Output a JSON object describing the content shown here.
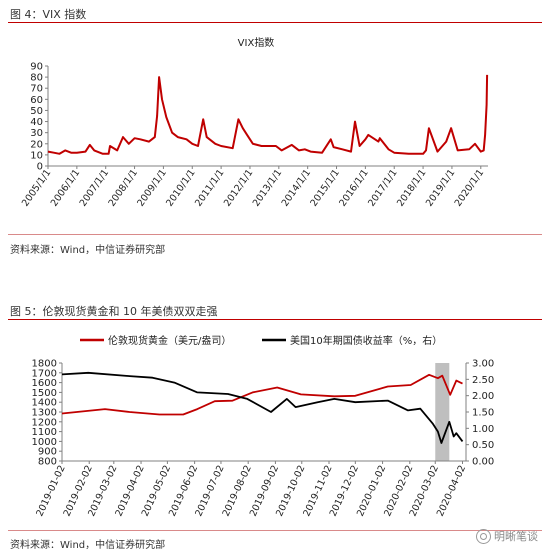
{
  "figure4": {
    "label": "图 4：VIX 指数",
    "source": "资料来源：Wind，中信证券研究部"
  },
  "figure5": {
    "label": "图 5：伦敦现货黄金和 10 年美债双双走强",
    "source": "资料来源：Wind，中信证券研究部"
  },
  "watermark": "明晰笔谈",
  "colors": {
    "red": "#c00000",
    "black": "#000000",
    "shade": "#bfbfbf",
    "axis": "#808080"
  },
  "chart_data": [
    {
      "type": "line",
      "title": "VIX指数",
      "xlabel": "",
      "ylabel": "",
      "ylim": [
        0,
        90
      ],
      "yticks": [
        0,
        10,
        20,
        30,
        40,
        50,
        60,
        70,
        80,
        90
      ],
      "xticks": [
        "2005/1/1",
        "2006/1/1",
        "2007/1/1",
        "2008/1/1",
        "2009/1/1",
        "2010/1/1",
        "2011/1/1",
        "2012/1/1",
        "2013/1/1",
        "2014/1/1",
        "2015/1/1",
        "2016/1/1",
        "2017/1/1",
        "2018/1/1",
        "2019/1/1",
        "2020/1/1"
      ],
      "grid": false,
      "legend": "none",
      "series": [
        {
          "color": "#c00000",
          "x": [
            2005.0,
            2005.2,
            2005.4,
            2005.6,
            2005.8,
            2006.0,
            2006.3,
            2006.45,
            2006.6,
            2006.9,
            2007.1,
            2007.15,
            2007.4,
            2007.6,
            2007.8,
            2008.0,
            2008.2,
            2008.5,
            2008.7,
            2008.78,
            2008.85,
            2008.95,
            2009.1,
            2009.3,
            2009.5,
            2009.8,
            2010.0,
            2010.2,
            2010.38,
            2010.5,
            2010.8,
            2011.0,
            2011.4,
            2011.6,
            2011.75,
            2011.9,
            2012.1,
            2012.4,
            2012.7,
            2012.9,
            2013.1,
            2013.45,
            2013.7,
            2013.9,
            2014.1,
            2014.5,
            2014.8,
            2014.9,
            2015.2,
            2015.5,
            2015.64,
            2015.8,
            2016.0,
            2016.1,
            2016.45,
            2016.5,
            2016.8,
            2017.0,
            2017.5,
            2017.9,
            2018.0,
            2018.1,
            2018.2,
            2018.5,
            2018.8,
            2018.97,
            2019.2,
            2019.6,
            2019.8,
            2020.0,
            2020.1,
            2020.15,
            2020.2,
            2020.22
          ],
          "values": [
            13,
            12,
            11,
            14,
            12,
            12,
            13,
            19,
            14,
            11,
            11,
            18,
            14,
            26,
            20,
            25,
            24,
            22,
            26,
            45,
            80,
            60,
            44,
            30,
            26,
            24,
            20,
            18,
            42,
            26,
            20,
            18,
            16,
            42,
            34,
            28,
            20,
            18,
            18,
            18,
            14,
            19,
            14,
            15,
            13,
            12,
            24,
            17,
            15,
            13,
            40,
            18,
            24,
            28,
            22,
            25,
            15,
            12,
            11,
            11,
            11,
            14,
            34,
            13,
            22,
            34,
            14,
            15,
            20,
            13,
            14,
            28,
            55,
            82
          ]
        }
      ]
    },
    {
      "type": "line",
      "title": "",
      "xlabel": "",
      "ylabel": "",
      "ylim": [
        800,
        1800
      ],
      "yticks": [
        800,
        900,
        1000,
        1100,
        1200,
        1300,
        1400,
        1500,
        1600,
        1700,
        1800
      ],
      "y2lim": [
        0,
        3
      ],
      "y2ticks": [
        "0.00",
        "0.50",
        "1.00",
        "1.50",
        "2.00",
        "2.50",
        "3.00"
      ],
      "xticks": [
        "2019-01-02",
        "2019-02-02",
        "2019-03-02",
        "2019-04-02",
        "2019-05-02",
        "2019-06-02",
        "2019-07-02",
        "2019-08-02",
        "2019-09-02",
        "2019-10-02",
        "2019-11-02",
        "2019-12-02",
        "2020-01-02",
        "2020-02-02",
        "2020-03-02",
        "2020-04-02"
      ],
      "grid": false,
      "legend": "top",
      "shaded_region": [
        "2020-03-02",
        "2020-03-18"
      ],
      "series": [
        {
          "name": "伦敦现货黄金（美元/盎司）",
          "axis": "left",
          "color": "#c00000",
          "x": [
            "2019-01-02",
            "2019-02-20",
            "2019-03-20",
            "2019-04-23",
            "2019-05-20",
            "2019-06-05",
            "2019-06-25",
            "2019-07-15",
            "2019-08-07",
            "2019-09-04",
            "2019-10-01",
            "2019-11-08",
            "2019-12-02",
            "2020-01-08",
            "2020-02-03",
            "2020-02-24",
            "2020-03-05",
            "2020-03-10",
            "2020-03-19",
            "2020-03-26",
            "2020-04-02"
          ],
          "values": [
            1285,
            1330,
            1300,
            1275,
            1275,
            1330,
            1410,
            1415,
            1500,
            1550,
            1480,
            1460,
            1465,
            1560,
            1575,
            1680,
            1645,
            1670,
            1475,
            1620,
            1590
          ]
        },
        {
          "name": "美国10年期国债收益率（%，右）",
          "axis": "right",
          "color": "#000000",
          "x": [
            "2019-01-02",
            "2019-02-01",
            "2019-03-20",
            "2019-04-15",
            "2019-05-10",
            "2019-06-05",
            "2019-07-10",
            "2019-08-01",
            "2019-08-28",
            "2019-09-15",
            "2019-09-25",
            "2019-10-20",
            "2019-11-08",
            "2019-12-02",
            "2020-01-08",
            "2020-01-31",
            "2020-02-14",
            "2020-02-28",
            "2020-03-05",
            "2020-03-09",
            "2020-03-18",
            "2020-03-23",
            "2020-03-26",
            "2020-04-02"
          ],
          "values": [
            2.65,
            2.7,
            2.6,
            2.55,
            2.4,
            2.1,
            2.05,
            1.9,
            1.5,
            1.9,
            1.65,
            1.8,
            1.9,
            1.8,
            1.85,
            1.55,
            1.6,
            1.15,
            0.9,
            0.55,
            1.2,
            0.75,
            0.85,
            0.6
          ]
        }
      ]
    }
  ]
}
